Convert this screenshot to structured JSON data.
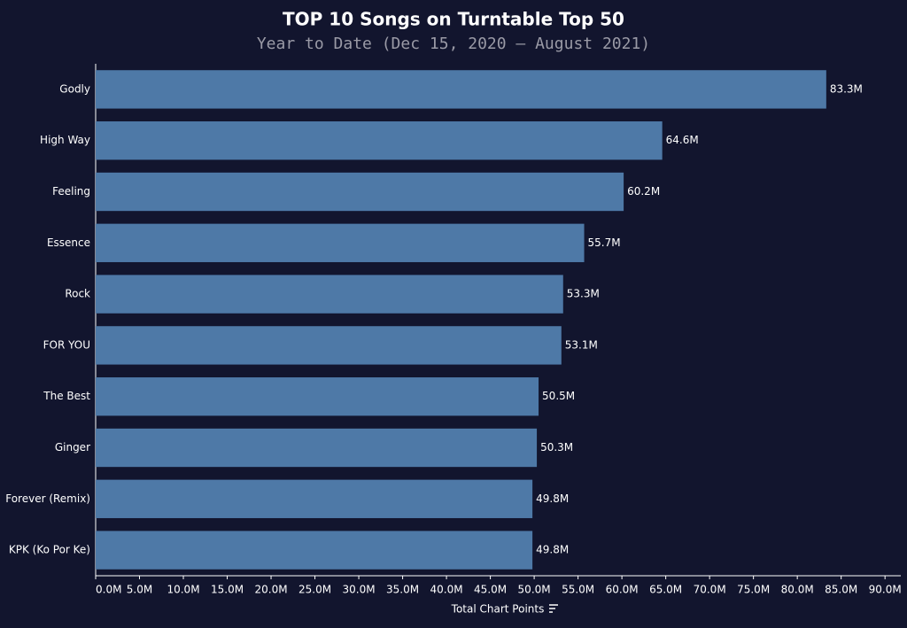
{
  "chart_data": {
    "type": "bar",
    "orientation": "horizontal",
    "title": "TOP 10 Songs on Turntable Top 50",
    "subtitle": "Year to Date (Dec 15, 2020 — August 2021)",
    "x_label": "Total Chart Points",
    "categories": [
      "Godly",
      "High Way",
      "Feeling",
      "Essence",
      "Rock",
      "FOR YOU",
      "The Best",
      "Ginger",
      "Forever (Remix)",
      "KPK (Ko Por Ke)"
    ],
    "values": [
      83.3,
      64.6,
      60.2,
      55.7,
      53.3,
      53.1,
      50.5,
      50.3,
      49.8,
      49.8
    ],
    "value_labels": [
      "83.3M",
      "64.6M",
      "60.2M",
      "55.7M",
      "53.3M",
      "53.1M",
      "50.5M",
      "50.3M",
      "49.8M",
      "49.8M"
    ],
    "color": "#4e79a7",
    "xlim": [
      0,
      91.8
    ],
    "xticks": [
      {
        "value": 0,
        "label": "0.0M"
      },
      {
        "value": 5,
        "label": "5.0M"
      },
      {
        "value": 10,
        "label": "10.0M"
      },
      {
        "value": 15,
        "label": "15.0M"
      },
      {
        "value": 20,
        "label": "20.0M"
      },
      {
        "value": 25,
        "label": "25.0M"
      },
      {
        "value": 30,
        "label": "30.0M"
      },
      {
        "value": 35,
        "label": "35.0M"
      },
      {
        "value": 40,
        "label": "40.0M"
      },
      {
        "value": 45,
        "label": "45.0M"
      },
      {
        "value": 50,
        "label": "50.0M"
      },
      {
        "value": 55,
        "label": "55.0M"
      },
      {
        "value": 60,
        "label": "60.0M"
      },
      {
        "value": 65,
        "label": "65.0M"
      },
      {
        "value": 70,
        "label": "70.0M"
      },
      {
        "value": 75,
        "label": "75.0M"
      },
      {
        "value": 80,
        "label": "80.0M"
      },
      {
        "value": 85,
        "label": "85.0M"
      },
      {
        "value": 90,
        "label": "90.0M"
      }
    ],
    "grid": false
  }
}
